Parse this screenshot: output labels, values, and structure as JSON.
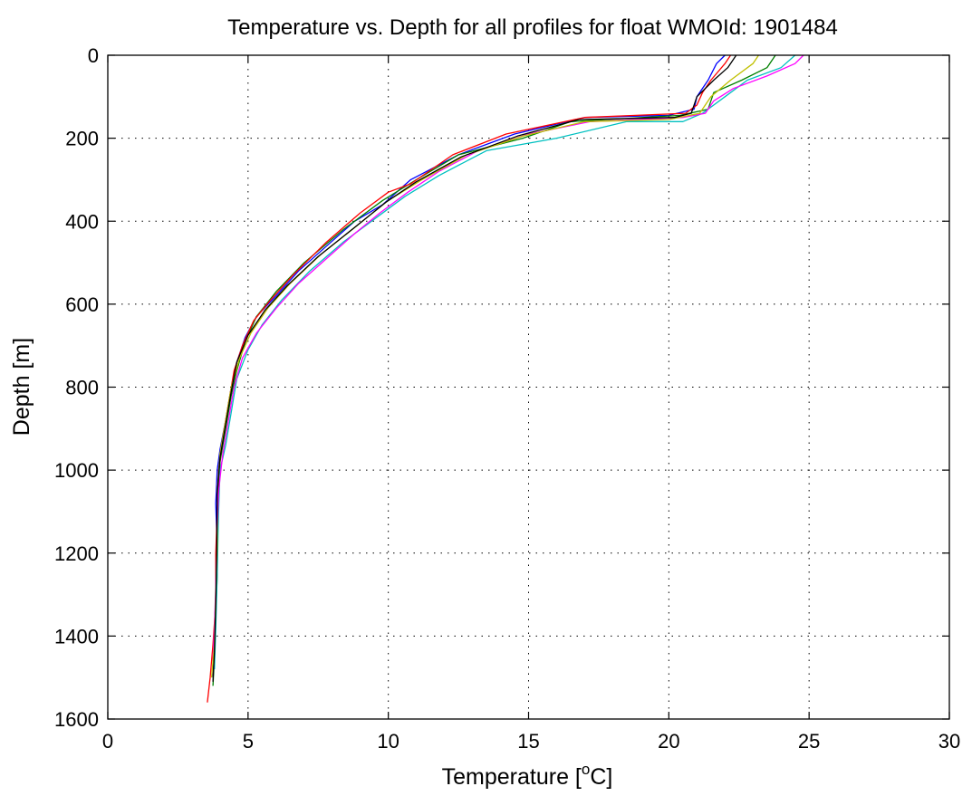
{
  "chart_data": {
    "type": "line",
    "title": "Temperature vs. Depth for all profiles for float WMOId: 1901484",
    "xlabel": "Temperature [",
    "xlabel_sup": "o",
    "xlabel_end": "C]",
    "ylabel": "Depth [m]",
    "xlim": [
      0,
      30
    ],
    "ylim": [
      0,
      1600
    ],
    "y_reversed": true,
    "grid": true,
    "xticks": [
      "0",
      "5",
      "10",
      "15",
      "20",
      "25",
      "30"
    ],
    "yticks": [
      "0",
      "200",
      "400",
      "600",
      "800",
      "1000",
      "1200",
      "1400",
      "1600"
    ],
    "series": [
      {
        "color": "#0000ff",
        "points": [
          [
            22.0,
            0
          ],
          [
            21.7,
            20
          ],
          [
            21.4,
            60
          ],
          [
            21.0,
            100
          ],
          [
            20.9,
            130
          ],
          [
            20.0,
            145
          ],
          [
            17.0,
            150
          ],
          [
            14.5,
            190
          ],
          [
            12.5,
            240
          ],
          [
            10.8,
            300
          ],
          [
            9.8,
            360
          ],
          [
            8.8,
            400
          ],
          [
            7.8,
            460
          ],
          [
            6.8,
            520
          ],
          [
            6.0,
            580
          ],
          [
            5.3,
            630
          ],
          [
            4.9,
            680
          ],
          [
            4.6,
            740
          ],
          [
            4.4,
            800
          ],
          [
            4.2,
            880
          ],
          [
            4.0,
            950
          ],
          [
            3.9,
            1000
          ],
          [
            3.85,
            1080
          ],
          [
            3.9,
            1200
          ],
          [
            3.85,
            1300
          ],
          [
            3.8,
            1400
          ],
          [
            3.75,
            1500
          ]
        ]
      },
      {
        "color": "#008000",
        "points": [
          [
            23.8,
            0
          ],
          [
            23.5,
            30
          ],
          [
            22.6,
            60
          ],
          [
            21.6,
            90
          ],
          [
            21.4,
            130
          ],
          [
            20.4,
            145
          ],
          [
            16.5,
            160
          ],
          [
            14.8,
            200
          ],
          [
            12.5,
            240
          ],
          [
            11.0,
            300
          ],
          [
            9.8,
            350
          ],
          [
            8.4,
            420
          ],
          [
            7.0,
            500
          ],
          [
            6.0,
            570
          ],
          [
            5.3,
            630
          ],
          [
            4.9,
            690
          ],
          [
            4.6,
            760
          ],
          [
            4.4,
            820
          ],
          [
            4.2,
            900
          ],
          [
            4.0,
            980
          ],
          [
            3.9,
            1100
          ],
          [
            3.9,
            1250
          ],
          [
            3.85,
            1350
          ],
          [
            3.8,
            1450
          ],
          [
            3.75,
            1520
          ]
        ]
      },
      {
        "color": "#ff0000",
        "points": [
          [
            22.2,
            0
          ],
          [
            22.0,
            20
          ],
          [
            21.5,
            60
          ],
          [
            21.2,
            90
          ],
          [
            21.0,
            120
          ],
          [
            20.6,
            140
          ],
          [
            17.0,
            150
          ],
          [
            14.2,
            190
          ],
          [
            12.3,
            240
          ],
          [
            10.8,
            310
          ],
          [
            10.0,
            330
          ],
          [
            9.0,
            380
          ],
          [
            7.8,
            450
          ],
          [
            6.6,
            530
          ],
          [
            5.8,
            590
          ],
          [
            5.2,
            640
          ],
          [
            4.8,
            700
          ],
          [
            4.5,
            760
          ],
          [
            4.3,
            840
          ],
          [
            4.1,
            920
          ],
          [
            3.95,
            1000
          ],
          [
            3.9,
            1100
          ],
          [
            3.85,
            1200
          ],
          [
            3.85,
            1320
          ],
          [
            3.75,
            1420
          ],
          [
            3.65,
            1500
          ],
          [
            3.55,
            1560
          ]
        ]
      },
      {
        "color": "#00c0c0",
        "points": [
          [
            24.5,
            0
          ],
          [
            24.0,
            30
          ],
          [
            22.8,
            60
          ],
          [
            22.0,
            100
          ],
          [
            21.2,
            140
          ],
          [
            20.5,
            160
          ],
          [
            18.5,
            160
          ],
          [
            16.0,
            200
          ],
          [
            13.5,
            230
          ],
          [
            11.8,
            290
          ],
          [
            10.6,
            340
          ],
          [
            9.6,
            390
          ],
          [
            8.4,
            450
          ],
          [
            7.2,
            520
          ],
          [
            6.2,
            590
          ],
          [
            5.5,
            650
          ],
          [
            5.0,
            710
          ],
          [
            4.6,
            780
          ],
          [
            4.4,
            860
          ],
          [
            4.2,
            940
          ],
          [
            4.0,
            1000
          ],
          [
            3.95,
            1100
          ],
          [
            3.9,
            1250
          ],
          [
            3.85,
            1380
          ],
          [
            3.8,
            1480
          ]
        ]
      },
      {
        "color": "#ff00ff",
        "points": [
          [
            24.8,
            0
          ],
          [
            24.5,
            20
          ],
          [
            23.5,
            50
          ],
          [
            22.3,
            80
          ],
          [
            21.6,
            110
          ],
          [
            21.3,
            140
          ],
          [
            20.5,
            150
          ],
          [
            17.2,
            160
          ],
          [
            15.0,
            190
          ],
          [
            13.2,
            230
          ],
          [
            11.8,
            280
          ],
          [
            10.7,
            330
          ],
          [
            9.7,
            380
          ],
          [
            8.8,
            430
          ],
          [
            7.8,
            490
          ],
          [
            6.8,
            550
          ],
          [
            6.0,
            610
          ],
          [
            5.3,
            670
          ],
          [
            4.8,
            730
          ],
          [
            4.5,
            800
          ],
          [
            4.3,
            880
          ],
          [
            4.1,
            960
          ],
          [
            3.95,
            1050
          ],
          [
            3.9,
            1150
          ],
          [
            3.85,
            1280
          ],
          [
            3.8,
            1380
          ],
          [
            3.75,
            1460
          ]
        ]
      },
      {
        "color": "#c0c000",
        "points": [
          [
            23.2,
            0
          ],
          [
            23.0,
            20
          ],
          [
            22.2,
            60
          ],
          [
            21.5,
            100
          ],
          [
            21.1,
            140
          ],
          [
            20.0,
            155
          ],
          [
            17.0,
            160
          ],
          [
            14.8,
            195
          ],
          [
            12.8,
            240
          ],
          [
            11.2,
            300
          ],
          [
            10.0,
            350
          ],
          [
            8.9,
            410
          ],
          [
            7.6,
            480
          ],
          [
            6.5,
            550
          ],
          [
            5.7,
            610
          ],
          [
            5.1,
            670
          ],
          [
            4.7,
            730
          ],
          [
            4.4,
            800
          ],
          [
            4.2,
            880
          ],
          [
            4.0,
            960
          ],
          [
            3.9,
            1050
          ],
          [
            3.9,
            1180
          ],
          [
            3.85,
            1300
          ],
          [
            3.8,
            1420
          ],
          [
            3.7,
            1500
          ]
        ]
      },
      {
        "color": "#000000",
        "points": [
          [
            22.4,
            0
          ],
          [
            22.1,
            30
          ],
          [
            21.6,
            60
          ],
          [
            21.0,
            100
          ],
          [
            20.8,
            140
          ],
          [
            20.2,
            150
          ],
          [
            16.8,
            155
          ],
          [
            14.6,
            195
          ],
          [
            12.6,
            245
          ],
          [
            11.0,
            305
          ],
          [
            9.9,
            355
          ],
          [
            8.8,
            415
          ],
          [
            7.5,
            485
          ],
          [
            6.4,
            555
          ],
          [
            5.6,
            615
          ],
          [
            5.0,
            675
          ],
          [
            4.6,
            740
          ],
          [
            4.4,
            810
          ],
          [
            4.2,
            890
          ],
          [
            4.0,
            970
          ],
          [
            3.9,
            1060
          ],
          [
            3.88,
            1200
          ],
          [
            3.85,
            1320
          ],
          [
            3.8,
            1440
          ],
          [
            3.75,
            1510
          ]
        ]
      }
    ]
  }
}
